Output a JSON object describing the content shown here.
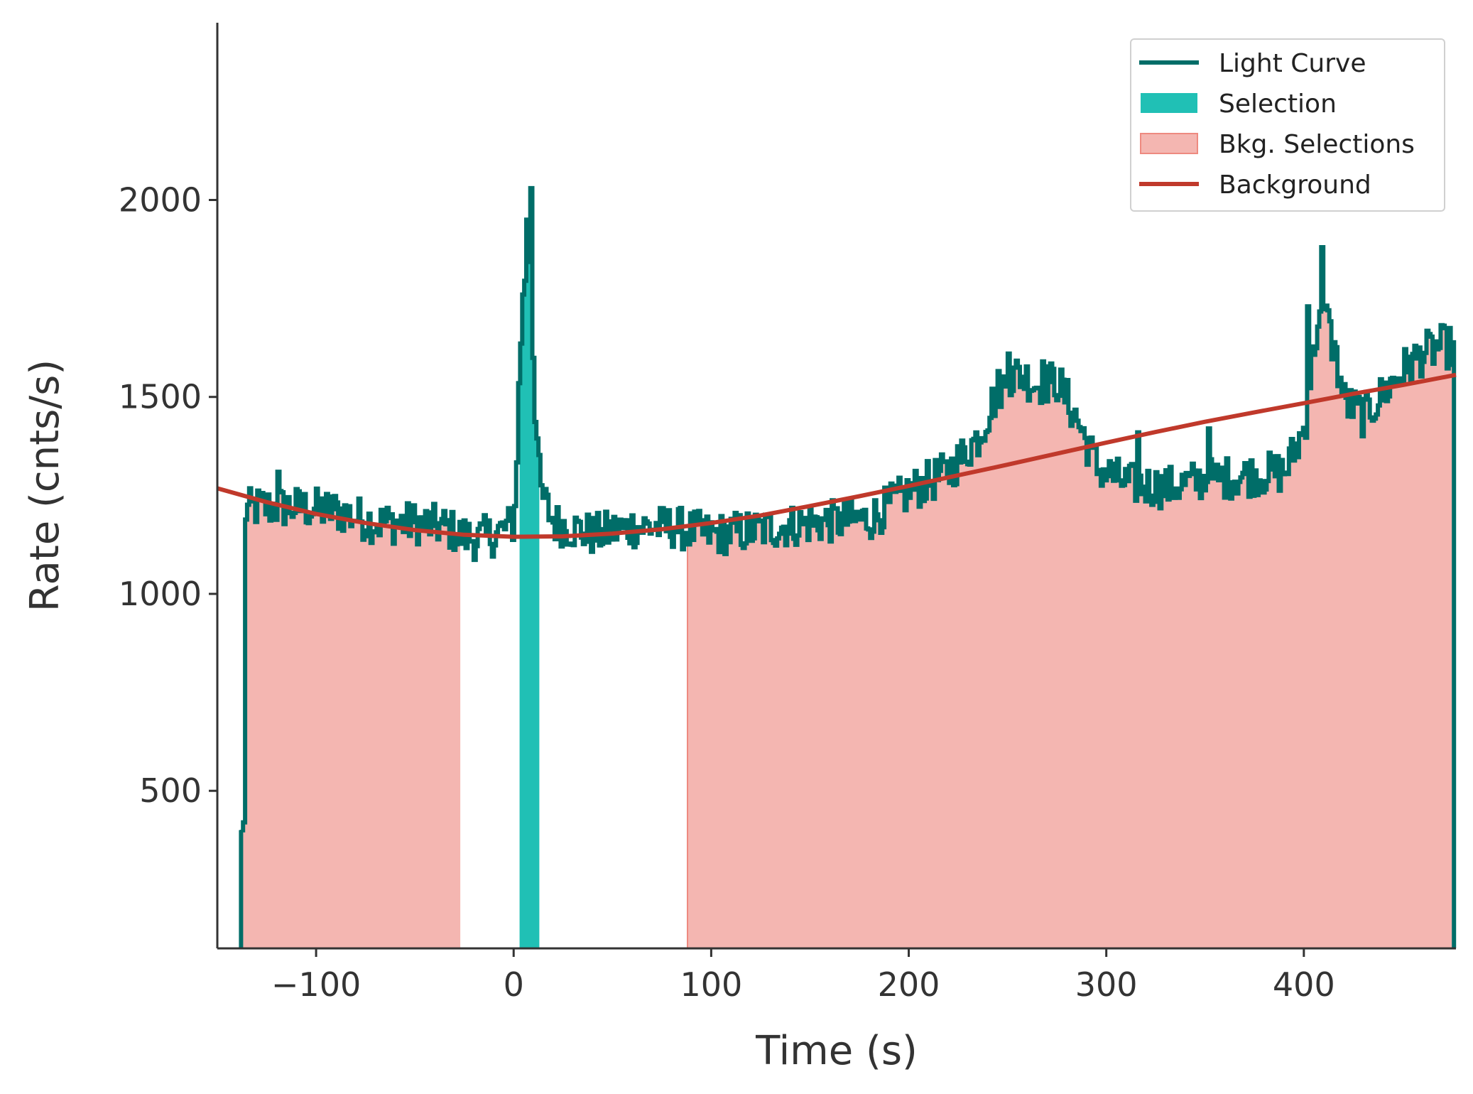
{
  "chart_data": {
    "type": "line",
    "xlabel": "Time (s)",
    "ylabel": "Rate (cnts/s)",
    "xlim": [
      -150,
      477
    ],
    "ylim": [
      100,
      2450
    ],
    "x_ticks": [
      -100,
      0,
      100,
      200,
      300,
      400
    ],
    "x_tick_labels": [
      "−100",
      "0",
      "100",
      "200",
      "300",
      "400"
    ],
    "y_ticks": [
      500,
      1000,
      1500,
      2000
    ],
    "y_tick_labels": [
      "500",
      "1000",
      "1500",
      "2000"
    ],
    "grid": false,
    "legend_position": "top-right",
    "legend": [
      {
        "label": "Light Curve",
        "kind": "line",
        "color": "#006d68"
      },
      {
        "label": "Selection",
        "kind": "patch",
        "color": "#20c0b5"
      },
      {
        "label": "Bkg. Selections",
        "kind": "patch",
        "color": "#f4b6b1",
        "edge": "#ee8a80"
      },
      {
        "label": "Background",
        "kind": "line",
        "color": "#c0392b"
      }
    ],
    "colors": {
      "light_curve": "#006d68",
      "selection": "#20c0b5",
      "bkg_fill": "#f4b6b1",
      "bkg_edge": "#ee8a80",
      "background": "#c0392b",
      "axis": "#333333"
    },
    "light_curve_anchors": {
      "x": [
        -138,
        -136,
        -130,
        -110,
        -90,
        -70,
        -50,
        -35,
        -28,
        -20,
        -10,
        0,
        3,
        5,
        8,
        10,
        13,
        20,
        40,
        60,
        80,
        100,
        120,
        150,
        180,
        200,
        220,
        235,
        245,
        255,
        265,
        275,
        285,
        295,
        310,
        330,
        350,
        370,
        390,
        400,
        405,
        410,
        415,
        420,
        430,
        440,
        450,
        460,
        470,
        476
      ],
      "y": [
        110,
        1210,
        1220,
        1220,
        1210,
        1180,
        1180,
        1170,
        1150,
        1140,
        1150,
        1180,
        1620,
        1760,
        1880,
        1520,
        1260,
        1180,
        1150,
        1170,
        1170,
        1150,
        1160,
        1180,
        1190,
        1260,
        1310,
        1400,
        1520,
        1560,
        1530,
        1540,
        1440,
        1320,
        1280,
        1270,
        1290,
        1300,
        1310,
        1420,
        1650,
        1710,
        1620,
        1490,
        1450,
        1510,
        1570,
        1610,
        1630,
        1620
      ]
    },
    "light_curve_spikes": [
      {
        "x": 8,
        "y": 2030
      },
      {
        "x": 6,
        "y": 1950
      },
      {
        "x": 4,
        "y": 1760
      },
      {
        "x": 409,
        "y": 1880
      },
      {
        "x": 402,
        "y": 1730
      },
      {
        "x": 412,
        "y": 1720
      },
      {
        "x": 267,
        "y": 1590
      },
      {
        "x": 250,
        "y": 1610
      },
      {
        "x": 351,
        "y": 1420
      },
      {
        "x": 316,
        "y": 1410
      },
      {
        "x": -120,
        "y": 1310
      }
    ],
    "selection": {
      "start": 3,
      "end": 13
    },
    "bkg_selections": [
      {
        "start": -138,
        "end": -27
      },
      {
        "start": 88,
        "end": 476
      }
    ],
    "background_fit": {
      "x": [
        -150,
        -125,
        -100,
        -75,
        -50,
        -25,
        0,
        25,
        50,
        75,
        100,
        125,
        150,
        175,
        200,
        225,
        250,
        275,
        300,
        325,
        350,
        375,
        400,
        425,
        450,
        477
      ],
      "y": [
        1268,
        1233,
        1203,
        1180,
        1162,
        1150,
        1145,
        1146,
        1153,
        1164,
        1180,
        1199,
        1223,
        1248,
        1274,
        1301,
        1328,
        1356,
        1384,
        1411,
        1437,
        1461,
        1484,
        1508,
        1530,
        1556
      ]
    }
  }
}
